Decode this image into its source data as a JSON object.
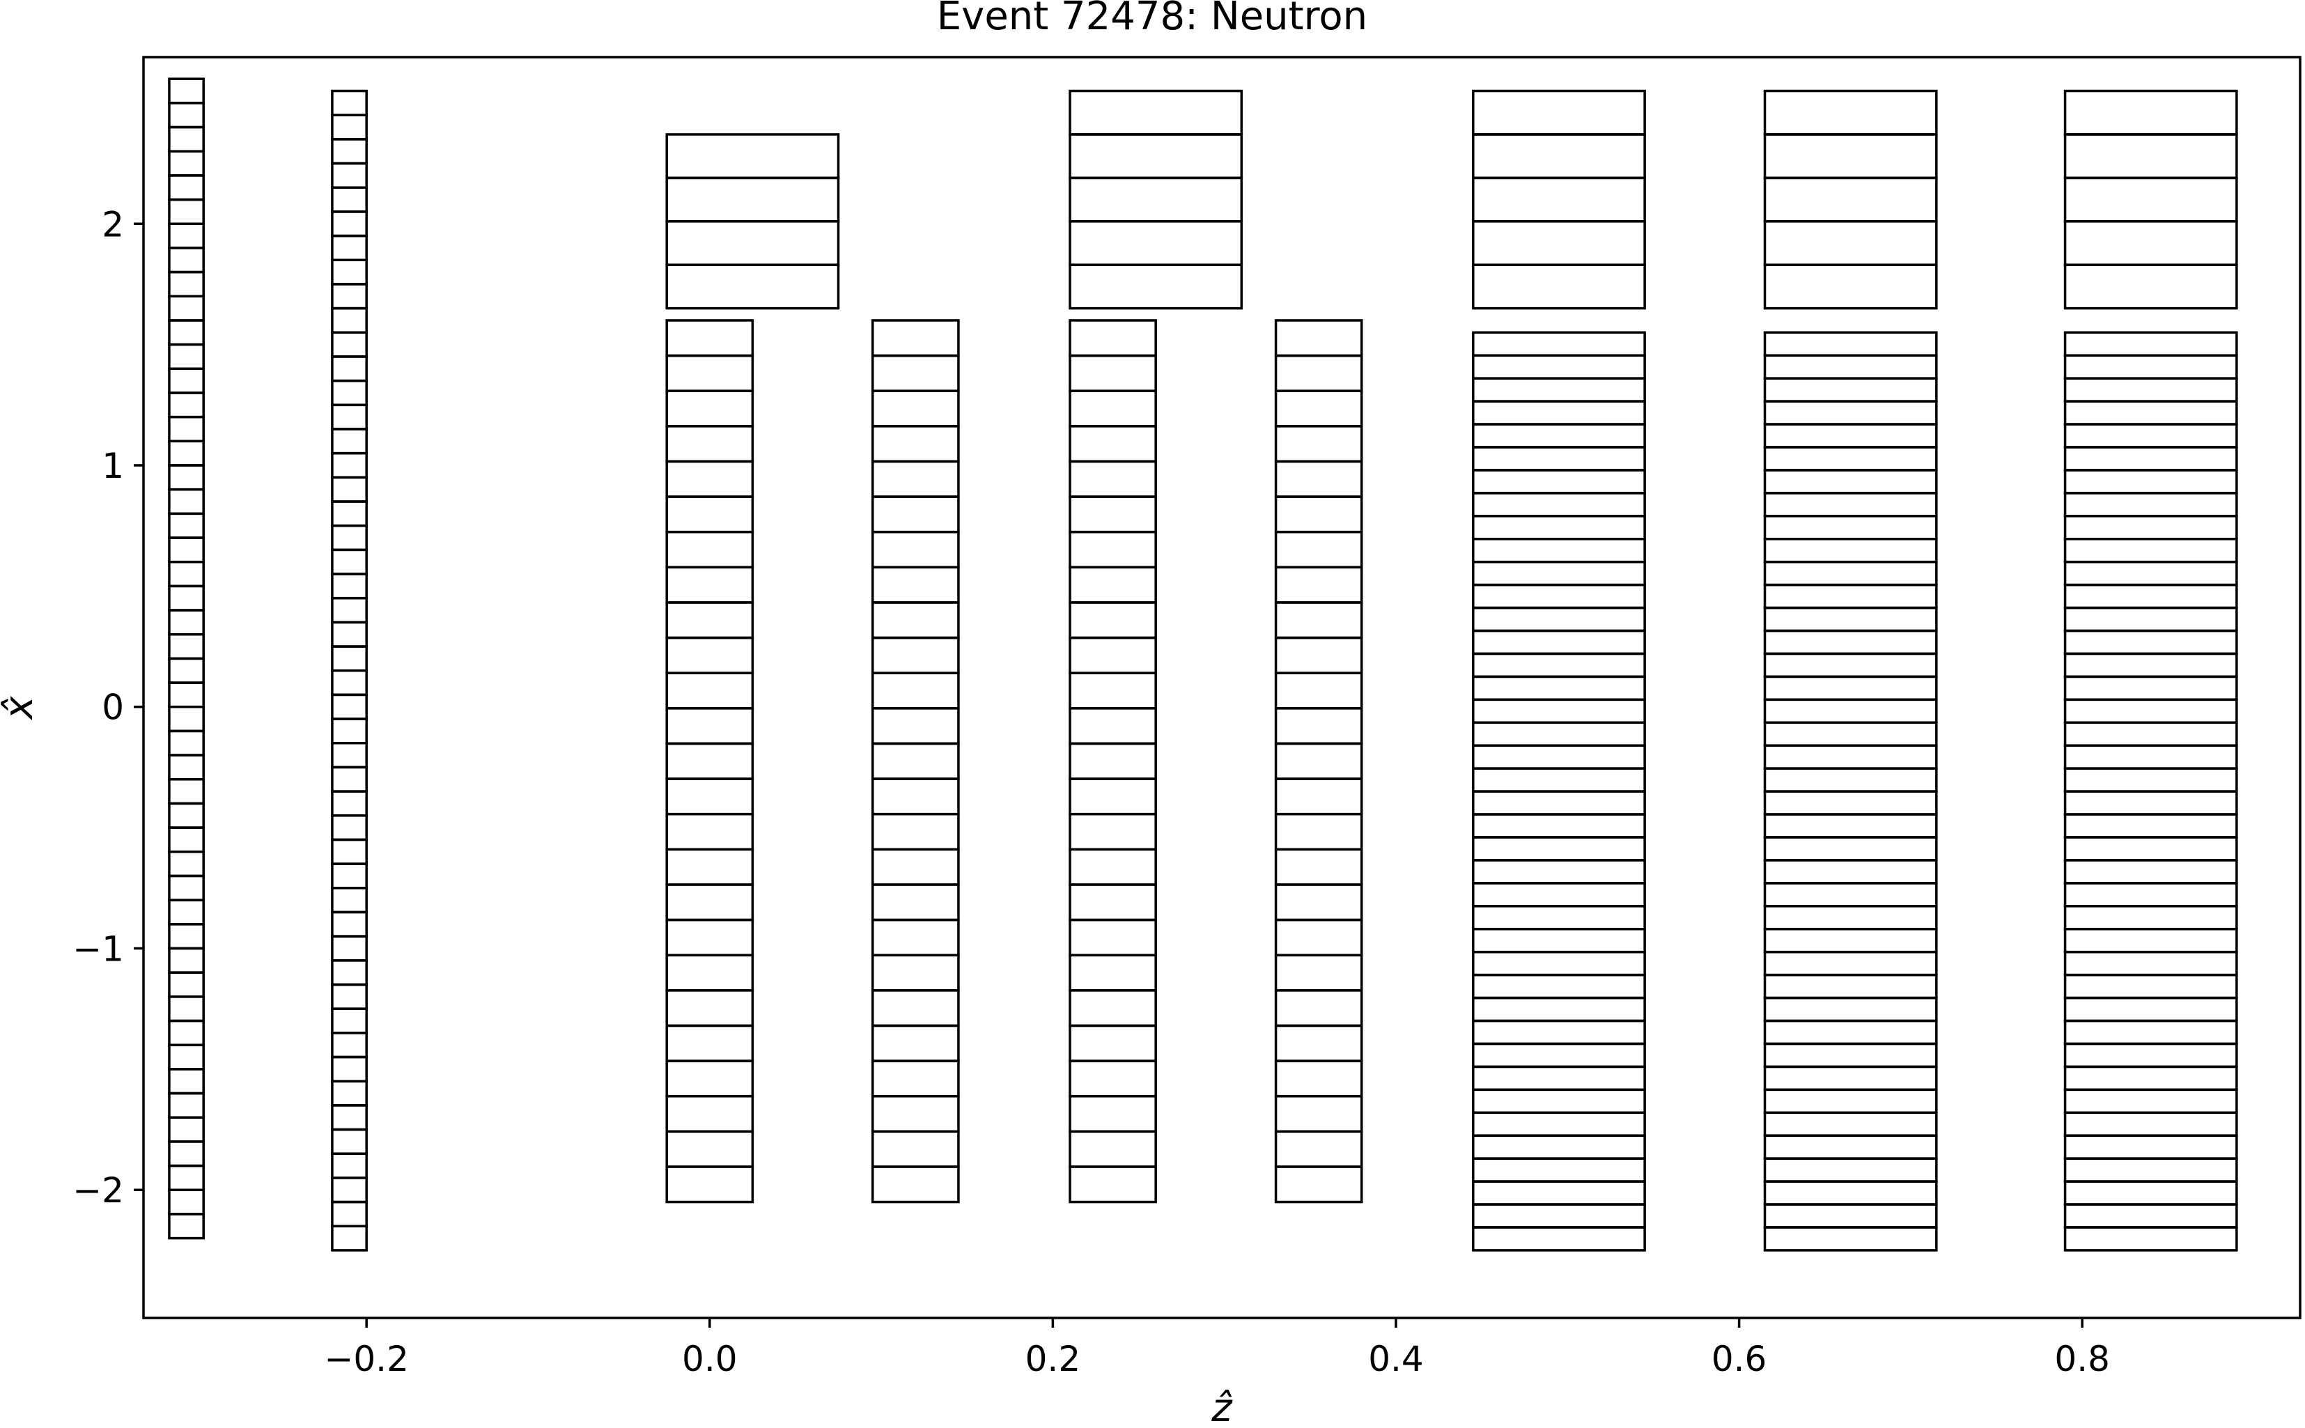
{
  "chart_data": {
    "type": "rectangles",
    "title": "Event 72478: Neutron",
    "xlabel": "ẑ",
    "ylabel": "x̂",
    "xlim": [
      -0.33,
      0.927
    ],
    "ylim": [
      -2.53,
      2.69
    ],
    "xticks": [
      -0.2,
      0.0,
      0.2,
      0.4,
      0.6,
      0.8
    ],
    "xtick_labels": [
      "−0.2",
      "0.0",
      "0.2",
      "0.4",
      "0.6",
      "0.8"
    ],
    "yticks": [
      -2,
      -1,
      0,
      1,
      2
    ],
    "ytick_labels": [
      "−2",
      "−1",
      "0",
      "1",
      "2"
    ],
    "grid": false,
    "edge_color": "#000000",
    "face_color": "none",
    "modules": [
      {
        "z0": -0.315,
        "z1": -0.295,
        "x0": -2.2,
        "x1": 2.6,
        "n": 48
      },
      {
        "z0": -0.22,
        "z1": -0.2,
        "x0": -2.25,
        "x1": 2.55,
        "n": 48
      },
      {
        "z0": -0.025,
        "z1": 0.025,
        "x0": -2.05,
        "x1": 1.6,
        "n": 25
      },
      {
        "z0": 0.095,
        "z1": 0.145,
        "x0": -2.05,
        "x1": 1.6,
        "n": 25
      },
      {
        "z0": 0.21,
        "z1": 0.26,
        "x0": -2.05,
        "x1": 1.6,
        "n": 25
      },
      {
        "z0": 0.33,
        "z1": 0.38,
        "x0": -2.05,
        "x1": 1.6,
        "n": 25
      },
      {
        "z0": -0.025,
        "z1": 0.075,
        "x0": 1.65,
        "x1": 2.37,
        "n": 4
      },
      {
        "z0": 0.21,
        "z1": 0.31,
        "x0": 1.65,
        "x1": 2.55,
        "n": 5
      },
      {
        "z0": 0.445,
        "z1": 0.545,
        "x0": 1.65,
        "x1": 2.55,
        "n": 5
      },
      {
        "z0": 0.615,
        "z1": 0.715,
        "x0": 1.65,
        "x1": 2.55,
        "n": 5
      },
      {
        "z0": 0.79,
        "z1": 0.89,
        "x0": 1.65,
        "x1": 2.55,
        "n": 5
      },
      {
        "z0": 0.445,
        "z1": 0.545,
        "x0": -2.25,
        "x1": 1.55,
        "n": 40
      },
      {
        "z0": 0.615,
        "z1": 0.715,
        "x0": -2.25,
        "x1": 1.55,
        "n": 40
      },
      {
        "z0": 0.79,
        "z1": 0.89,
        "x0": -2.25,
        "x1": 1.55,
        "n": 40
      }
    ]
  }
}
